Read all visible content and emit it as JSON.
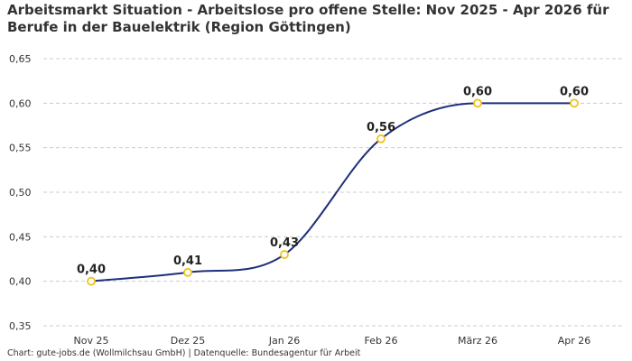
{
  "title": "Arbeitsmarkt Situation - Arbeitslose pro offene Stelle: Nov 2025 - Apr 2026 für Berufe in der Bauelektrik (Region Göttingen)",
  "footer": "Chart: gute-jobs.de (Wollmilchsau GmbH) | Datenquelle: Bundesagentur für Arbeit",
  "colors": {
    "line": "#1f2f7a",
    "marker_stroke": "#f2c21b",
    "marker_fill": "#ffffff",
    "grid": "#cccccc"
  },
  "chart_data": {
    "type": "line",
    "title": "Arbeitsmarkt Situation - Arbeitslose pro offene Stelle: Nov 2025 - Apr 2026 für Berufe in der Bauelektrik (Region Göttingen)",
    "categories": [
      "Nov 25",
      "Dez 25",
      "Jan 26",
      "Feb 26",
      "März 26",
      "Apr 26"
    ],
    "values": [
      0.4,
      0.41,
      0.43,
      0.56,
      0.6,
      0.6
    ],
    "data_labels": [
      "0,40",
      "0,41",
      "0,43",
      "0,56",
      "0,60",
      "0,60"
    ],
    "yticks": [
      0.35,
      0.4,
      0.45,
      0.5,
      0.55,
      0.6,
      0.65
    ],
    "ytick_labels": [
      "0,35",
      "0,40",
      "0,45",
      "0,50",
      "0,55",
      "0,60",
      "0,65"
    ],
    "ylim": [
      0.35,
      0.65
    ],
    "xlabel": "",
    "ylabel": "",
    "grid": "horizontal dashed",
    "legend": "none"
  }
}
